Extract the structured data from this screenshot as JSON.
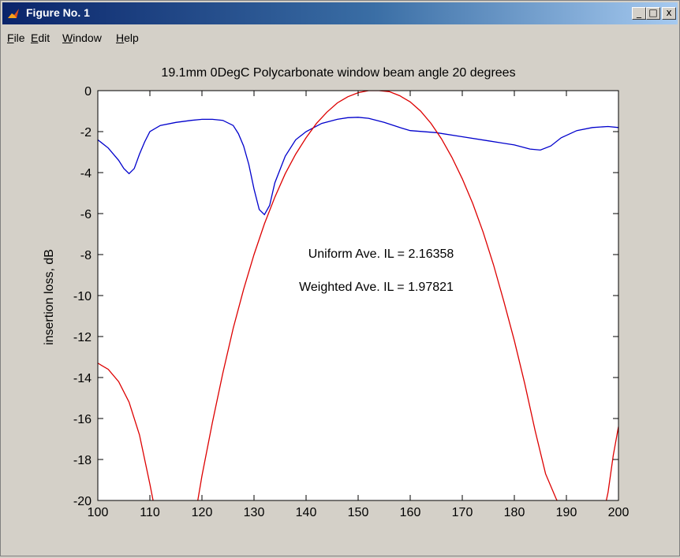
{
  "window": {
    "title": "Figure No. 1",
    "controls": {
      "minimize": "_",
      "maximize": "□",
      "close": "x"
    }
  },
  "menu": [
    "File",
    "Edit",
    "Window",
    "Help"
  ],
  "colors": {
    "blue_series": "#0000cc",
    "red_series": "#dd0000",
    "title_bar": "#0a246a",
    "figure_bg": "#d4d0c8",
    "axes_bg": "#ffffff"
  },
  "chart_data": {
    "type": "line",
    "title": "19.1mm 0DegC Polycarbonate window beam angle 20 degrees",
    "xlabel": "",
    "ylabel": "insertion loss, dB",
    "xlim": [
      100,
      200
    ],
    "ylim": [
      -20,
      0
    ],
    "xticks": [
      100,
      110,
      120,
      130,
      140,
      150,
      160,
      170,
      180,
      190,
      200
    ],
    "yticks": [
      0,
      -2,
      -4,
      -6,
      -8,
      -10,
      -12,
      -14,
      -16,
      -18,
      -20
    ],
    "grid": false,
    "annotations": [
      "Uniform Ave. IL =  2.16358",
      "Weighted Ave. IL =  1.97821"
    ],
    "series": [
      {
        "color": "#0000cc",
        "x": [
          100,
          102,
          104,
          105,
          106,
          107,
          108,
          109,
          110,
          112,
          115,
          118,
          120,
          122,
          124,
          126,
          127,
          128,
          129,
          130,
          131,
          132,
          133,
          134,
          136,
          138,
          140,
          143,
          146,
          148,
          150,
          152,
          155,
          158,
          160,
          165,
          170,
          175,
          180,
          183,
          185,
          187,
          189,
          192,
          195,
          198,
          200
        ],
        "y": [
          -2.4,
          -2.8,
          -3.4,
          -3.8,
          -4.05,
          -3.8,
          -3.1,
          -2.5,
          -2.0,
          -1.7,
          -1.55,
          -1.45,
          -1.4,
          -1.4,
          -1.45,
          -1.7,
          -2.1,
          -2.7,
          -3.6,
          -4.8,
          -5.8,
          -6.05,
          -5.6,
          -4.5,
          -3.2,
          -2.4,
          -2.0,
          -1.6,
          -1.4,
          -1.32,
          -1.3,
          -1.35,
          -1.55,
          -1.8,
          -1.95,
          -2.05,
          -2.25,
          -2.45,
          -2.65,
          -2.85,
          -2.9,
          -2.7,
          -2.3,
          -1.95,
          -1.8,
          -1.75,
          -1.8
        ]
      },
      {
        "color": "#dd0000",
        "x": [
          100,
          102,
          104,
          106,
          108,
          110,
          111,
          112,
          118,
          119,
          120,
          122,
          124,
          126,
          128,
          130,
          132,
          134,
          136,
          138,
          140,
          142,
          144,
          146,
          148,
          150,
          152,
          154,
          156,
          158,
          160,
          162,
          164,
          166,
          168,
          170,
          172,
          174,
          176,
          178,
          180,
          182,
          184,
          186,
          188,
          188.6,
          189.5,
          197,
          197.5,
          198,
          199,
          200
        ],
        "y": [
          -13.3,
          -13.6,
          -14.2,
          -15.2,
          -16.8,
          -19.2,
          -20.5,
          -22,
          -22,
          -20.3,
          -18.8,
          -16.2,
          -13.8,
          -11.6,
          -9.7,
          -8.0,
          -6.5,
          -5.2,
          -4.05,
          -3.1,
          -2.3,
          -1.6,
          -1.05,
          -0.6,
          -0.3,
          -0.1,
          0,
          0,
          -0.05,
          -0.25,
          -0.55,
          -1.0,
          -1.6,
          -2.35,
          -3.25,
          -4.3,
          -5.5,
          -6.9,
          -8.5,
          -10.3,
          -12.2,
          -14.3,
          -16.6,
          -18.7,
          -19.9,
          -20.2,
          -21,
          -21,
          -20.2,
          -19.6,
          -17.8,
          -16.4
        ]
      }
    ]
  }
}
